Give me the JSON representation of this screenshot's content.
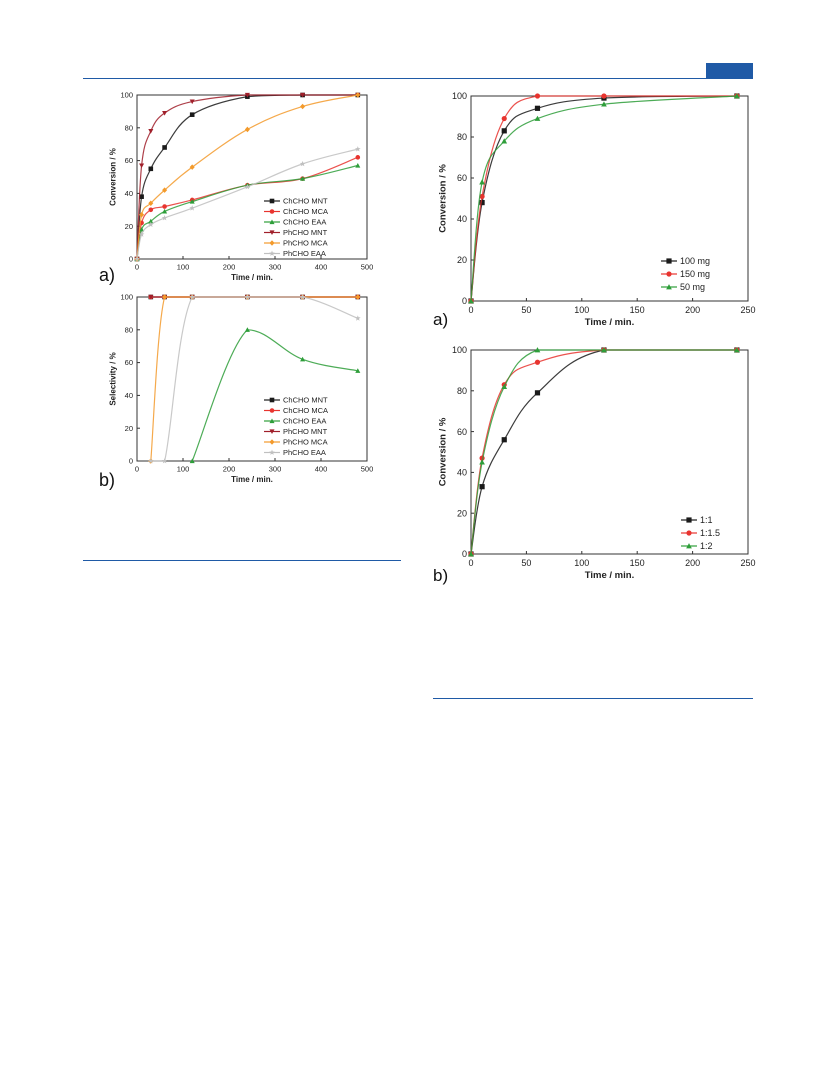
{
  "chart_data": [
    {
      "type": "scatter",
      "panel_label": "a)",
      "xlabel": "Time / min.",
      "ylabel": "Conversion / %",
      "xlim": [
        0,
        500
      ],
      "ylim": [
        0,
        100
      ],
      "xticks": [
        0,
        100,
        200,
        300,
        400,
        500
      ],
      "yticks": [
        0,
        20,
        40,
        60,
        80,
        100
      ],
      "legend_position": "bottom-right",
      "series": [
        {
          "name": "ChCHO MNT",
          "color": "#1a1a1a",
          "marker": "square",
          "x": [
            0,
            10,
            30,
            60,
            120,
            240,
            360,
            480
          ],
          "y": [
            0,
            38,
            55,
            68,
            88,
            99,
            100,
            100
          ],
          "fit_x": [
            0,
            480
          ],
          "fit_y": [
            0,
            100
          ]
        },
        {
          "name": "ChCHO MCA",
          "color": "#e8342f",
          "marker": "circle",
          "x": [
            0,
            10,
            30,
            60,
            120,
            240,
            360,
            480
          ],
          "y": [
            0,
            22,
            30,
            32,
            36,
            45,
            49,
            62
          ]
        },
        {
          "name": "ChCHO EAA",
          "color": "#2e9e3a",
          "marker": "triangle-up",
          "x": [
            0,
            10,
            30,
            60,
            120,
            240,
            360,
            480
          ],
          "y": [
            0,
            18,
            23,
            29,
            35,
            45,
            49,
            57
          ]
        },
        {
          "name": "PhCHO MNT",
          "color": "#a01f2a",
          "marker": "triangle-down",
          "x": [
            0,
            10,
            30,
            60,
            120,
            240,
            360,
            480
          ],
          "y": [
            0,
            57,
            78,
            89,
            96,
            100,
            100,
            100
          ]
        },
        {
          "name": "PhCHO MCA",
          "color": "#f39a2b",
          "marker": "diamond",
          "x": [
            0,
            10,
            30,
            60,
            120,
            240,
            360,
            480
          ],
          "y": [
            0,
            27,
            34,
            42,
            56,
            79,
            93,
            100
          ]
        },
        {
          "name": "PhCHO EAA",
          "color": "#c0c0c0",
          "marker": "star",
          "x": [
            0,
            10,
            30,
            60,
            120,
            240,
            360,
            480
          ],
          "y": [
            0,
            15,
            21,
            25,
            31,
            44,
            58,
            67
          ]
        }
      ]
    },
    {
      "type": "scatter",
      "panel_label": "b)",
      "xlabel": "Time / min.",
      "ylabel": "Selectivity / %",
      "xlim": [
        0,
        500
      ],
      "ylim": [
        0,
        100
      ],
      "xticks": [
        0,
        100,
        200,
        300,
        400,
        500
      ],
      "yticks": [
        0,
        20,
        40,
        60,
        80,
        100
      ],
      "legend_position": "bottom-right",
      "series": [
        {
          "name": "ChCHO MNT",
          "color": "#1a1a1a",
          "marker": "square",
          "x": [
            30,
            60,
            120,
            240,
            360,
            480
          ],
          "y": [
            100,
            100,
            100,
            100,
            100,
            100
          ]
        },
        {
          "name": "ChCHO MCA",
          "color": "#e8342f",
          "marker": "circle",
          "x": [
            30,
            60,
            120,
            240,
            360,
            480
          ],
          "y": [
            100,
            100,
            100,
            100,
            100,
            100
          ]
        },
        {
          "name": "ChCHO EAA",
          "color": "#2e9e3a",
          "marker": "triangle-up",
          "x": [
            120,
            240,
            360,
            480
          ],
          "y": [
            0,
            80,
            62,
            55
          ]
        },
        {
          "name": "PhCHO MNT",
          "color": "#a01f2a",
          "marker": "triangle-down",
          "x": [
            30,
            60,
            120,
            240,
            360,
            480
          ],
          "y": [
            100,
            100,
            100,
            100,
            100,
            100
          ]
        },
        {
          "name": "PhCHO MCA",
          "color": "#f39a2b",
          "marker": "diamond",
          "x": [
            30,
            60,
            120,
            240,
            360,
            480
          ],
          "y": [
            0,
            100,
            100,
            100,
            100,
            100
          ]
        },
        {
          "name": "PhCHO EAA",
          "color": "#c0c0c0",
          "marker": "star",
          "x": [
            30,
            60,
            120,
            240,
            360,
            480
          ],
          "y": [
            0,
            0,
            100,
            100,
            100,
            87
          ]
        }
      ]
    },
    {
      "type": "scatter",
      "panel_label": "a)",
      "xlabel": "Time / min.",
      "ylabel": "Conversion / %",
      "xlim": [
        0,
        250
      ],
      "ylim": [
        0,
        100
      ],
      "xticks": [
        0,
        50,
        100,
        150,
        200,
        250
      ],
      "yticks": [
        0,
        20,
        40,
        60,
        80,
        100
      ],
      "legend_position": "bottom-right",
      "series": [
        {
          "name": "100 mg",
          "color": "#1a1a1a",
          "marker": "square",
          "x": [
            0,
            10,
            30,
            60,
            120,
            240
          ],
          "y": [
            0,
            48,
            83,
            94,
            99,
            100
          ]
        },
        {
          "name": "150 mg",
          "color": "#e8342f",
          "marker": "circle",
          "x": [
            0,
            10,
            30,
            60,
            120,
            240
          ],
          "y": [
            0,
            51,
            89,
            100,
            100,
            100
          ]
        },
        {
          "name": "50 mg",
          "color": "#2e9e3a",
          "marker": "triangle-up",
          "x": [
            0,
            10,
            30,
            60,
            120,
            240
          ],
          "y": [
            0,
            58,
            78,
            89,
            96,
            100
          ]
        }
      ]
    },
    {
      "type": "scatter",
      "panel_label": "b)",
      "xlabel": "Time / min.",
      "ylabel": "Conversion / %",
      "xlim": [
        0,
        250
      ],
      "ylim": [
        0,
        100
      ],
      "xticks": [
        0,
        50,
        100,
        150,
        200,
        250
      ],
      "yticks": [
        0,
        20,
        40,
        60,
        80,
        100
      ],
      "legend_position": "bottom-right",
      "series": [
        {
          "name": "1:1",
          "color": "#1a1a1a",
          "marker": "square",
          "x": [
            0,
            10,
            30,
            60,
            120,
            240
          ],
          "y": [
            0,
            33,
            56,
            79,
            100,
            100
          ]
        },
        {
          "name": "1:1.5",
          "color": "#e8342f",
          "marker": "circle",
          "x": [
            0,
            10,
            30,
            60,
            120,
            240
          ],
          "y": [
            0,
            47,
            83,
            94,
            100,
            100
          ]
        },
        {
          "name": "1:2",
          "color": "#2e9e3a",
          "marker": "triangle-up",
          "x": [
            0,
            10,
            30,
            60,
            120,
            240
          ],
          "y": [
            0,
            45,
            82,
            100,
            100,
            100
          ]
        }
      ]
    }
  ]
}
